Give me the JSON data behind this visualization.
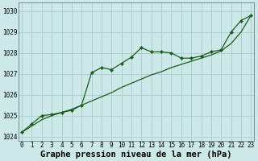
{
  "xlabel": "Graphe pression niveau de la mer (hPa)",
  "background_color": "#cce8e8",
  "grid_color": "#aacccc",
  "line_color": "#1a5c1a",
  "x_values": [
    0,
    1,
    2,
    3,
    4,
    5,
    6,
    7,
    8,
    9,
    10,
    11,
    12,
    13,
    14,
    15,
    16,
    17,
    18,
    19,
    20,
    21,
    22,
    23
  ],
  "y_main": [
    1024.2,
    1024.6,
    1025.0,
    1025.05,
    1025.15,
    1025.25,
    1025.5,
    1027.05,
    1027.3,
    1027.2,
    1027.5,
    1027.8,
    1028.25,
    1028.05,
    1028.05,
    1028.0,
    1027.75,
    1027.75,
    1027.85,
    1028.05,
    1028.15,
    1029.0,
    1029.55,
    1029.8
  ],
  "y_smooth": [
    1024.2,
    1024.5,
    1024.8,
    1025.0,
    1025.15,
    1025.3,
    1025.5,
    1025.7,
    1025.9,
    1026.1,
    1026.35,
    1026.55,
    1026.75,
    1026.95,
    1027.1,
    1027.3,
    1027.45,
    1027.6,
    1027.75,
    1027.9,
    1028.1,
    1028.45,
    1029.0,
    1029.8
  ],
  "ylim": [
    1023.8,
    1030.4
  ],
  "xlim": [
    -0.3,
    23.3
  ],
  "yticks": [
    1024,
    1025,
    1026,
    1027,
    1028,
    1029,
    1030
  ],
  "xticks": [
    0,
    1,
    2,
    3,
    4,
    5,
    6,
    7,
    8,
    9,
    10,
    11,
    12,
    13,
    14,
    15,
    16,
    17,
    18,
    19,
    20,
    21,
    22,
    23
  ],
  "tick_fontsize": 5.5,
  "xlabel_fontsize": 7.5
}
